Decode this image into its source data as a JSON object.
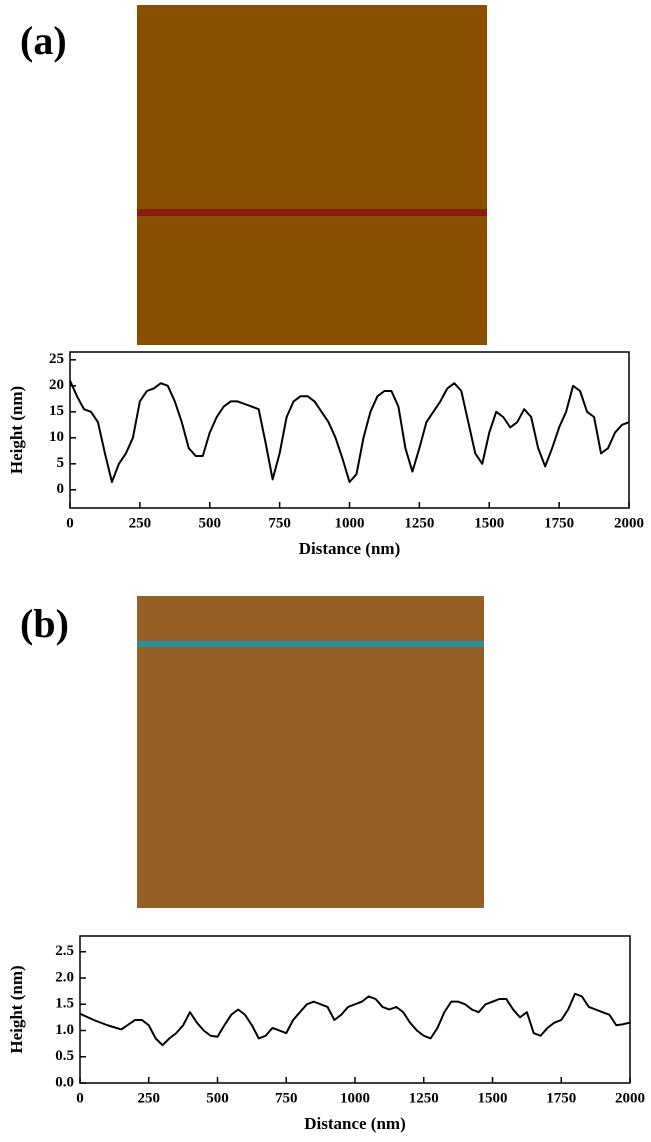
{
  "chart_data": [
    {
      "type": "line",
      "panel_label": "(a)",
      "xlabel": "Distance (nm)",
      "ylabel": "Height (nm)",
      "color": "#000000",
      "x": [
        0,
        25,
        50,
        75,
        100,
        125,
        150,
        175,
        200,
        225,
        250,
        275,
        300,
        325,
        350,
        375,
        400,
        425,
        450,
        475,
        500,
        525,
        550,
        575,
        600,
        625,
        650,
        675,
        700,
        725,
        750,
        775,
        800,
        825,
        850,
        875,
        900,
        925,
        950,
        975,
        1000,
        1025,
        1050,
        1075,
        1100,
        1125,
        1150,
        1175,
        1200,
        1225,
        1250,
        1275,
        1300,
        1325,
        1350,
        1375,
        1400,
        1425,
        1450,
        1475,
        1500,
        1525,
        1550,
        1575,
        1600,
        1625,
        1650,
        1675,
        1700,
        1725,
        1750,
        1775,
        1800,
        1825,
        1850,
        1875,
        1900,
        1925,
        1950,
        1975,
        2000
      ],
      "values": [
        21,
        18,
        15.5,
        15,
        13,
        7,
        1.5,
        5,
        7,
        10,
        17,
        19,
        19.5,
        20.5,
        20,
        17,
        13,
        8,
        6.5,
        6.5,
        11,
        14,
        16,
        17,
        17,
        16.5,
        16,
        15.5,
        9,
        2,
        7,
        14,
        17,
        18,
        18,
        17,
        15,
        13,
        10,
        6,
        1.5,
        3,
        10,
        15,
        18,
        19,
        19,
        16,
        8,
        3.5,
        8,
        13,
        15,
        17,
        19.5,
        20.5,
        19,
        13,
        7,
        5,
        11,
        15,
        14,
        12,
        13,
        15.5,
        14,
        8,
        4.5,
        8,
        12,
        15,
        20,
        19,
        15,
        14,
        7,
        8,
        11,
        12.5,
        13
      ],
      "xlim": [
        0,
        2000
      ],
      "xticks": [
        0,
        250,
        500,
        750,
        1000,
        1250,
        1500,
        1750,
        2000
      ],
      "ylim": [
        -3.5,
        26.5
      ],
      "yticks": [
        0,
        5,
        10,
        15,
        20,
        25
      ]
    },
    {
      "type": "line",
      "panel_label": "(b)",
      "xlabel": "Distance (nm)",
      "ylabel": "Height (nm)",
      "color": "#000000",
      "x": [
        0,
        50,
        100,
        150,
        200,
        225,
        250,
        275,
        300,
        325,
        350,
        375,
        400,
        425,
        450,
        475,
        500,
        525,
        550,
        575,
        600,
        625,
        650,
        675,
        700,
        725,
        750,
        775,
        800,
        825,
        850,
        875,
        900,
        925,
        950,
        975,
        1000,
        1025,
        1050,
        1075,
        1100,
        1125,
        1150,
        1175,
        1200,
        1225,
        1250,
        1275,
        1300,
        1325,
        1350,
        1375,
        1400,
        1425,
        1450,
        1475,
        1500,
        1525,
        1550,
        1575,
        1600,
        1625,
        1650,
        1675,
        1700,
        1725,
        1750,
        1775,
        1800,
        1825,
        1850,
        1875,
        1900,
        1925,
        1950,
        1975,
        2000
      ],
      "values": [
        1.32,
        1.2,
        1.1,
        1.02,
        1.2,
        1.2,
        1.1,
        0.85,
        0.72,
        0.85,
        0.95,
        1.1,
        1.35,
        1.15,
        1.0,
        0.9,
        0.88,
        1.1,
        1.3,
        1.4,
        1.3,
        1.1,
        0.85,
        0.9,
        1.05,
        1.0,
        0.95,
        1.2,
        1.35,
        1.5,
        1.55,
        1.5,
        1.45,
        1.2,
        1.3,
        1.45,
        1.5,
        1.55,
        1.65,
        1.6,
        1.45,
        1.4,
        1.45,
        1.35,
        1.15,
        1.0,
        0.9,
        0.85,
        1.05,
        1.35,
        1.55,
        1.55,
        1.5,
        1.4,
        1.35,
        1.5,
        1.55,
        1.6,
        1.6,
        1.4,
        1.25,
        1.35,
        0.95,
        0.9,
        1.05,
        1.15,
        1.2,
        1.4,
        1.7,
        1.65,
        1.45,
        1.4,
        1.35,
        1.3,
        1.1,
        1.12,
        1.15
      ],
      "xlim": [
        0,
        2000
      ],
      "xticks": [
        0,
        250,
        500,
        750,
        1000,
        1250,
        1500,
        1750,
        2000
      ],
      "ylim": [
        0,
        2.8
      ],
      "yticks": [
        {
          "value": 0,
          "label": "0.0"
        },
        0.5,
        {
          "value": 1,
          "label": "1.0"
        },
        1.5,
        {
          "value": 2,
          "label": "2.0"
        },
        2.5
      ]
    }
  ]
}
